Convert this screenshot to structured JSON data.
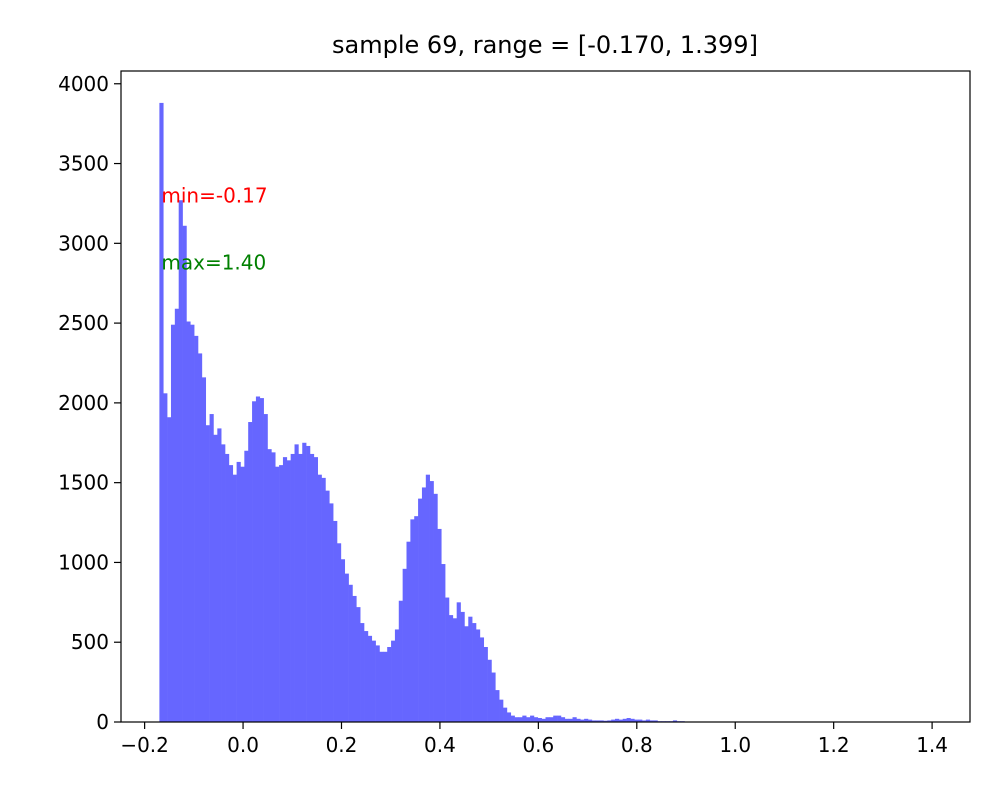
{
  "chart_data": {
    "type": "bar",
    "title": "sample 69, range = [-0.170, 1.399]",
    "xlabel": "",
    "ylabel": "",
    "xlim": [
      -0.248,
      1.477
    ],
    "ylim": [
      0,
      4080
    ],
    "bar_color": "#6666ff",
    "grid": false,
    "legend": "none",
    "xticks": [
      -0.2,
      0.0,
      0.2,
      0.4,
      0.6,
      0.8,
      1.0,
      1.2,
      1.4
    ],
    "xtick_labels": [
      "−0.2",
      "0.0",
      "0.2",
      "0.4",
      "0.6",
      "0.8",
      "1.0",
      "1.2",
      "1.4"
    ],
    "yticks": [
      0,
      500,
      1000,
      1500,
      2000,
      2500,
      3000,
      3500,
      4000
    ],
    "ytick_labels": [
      "0",
      "500",
      "1000",
      "1500",
      "2000",
      "2500",
      "3000",
      "3500",
      "4000"
    ],
    "bins": {
      "start": -0.17,
      "end": 1.399,
      "count": 200,
      "values": [
        3880,
        2060,
        1910,
        2490,
        2590,
        3270,
        3110,
        2510,
        2490,
        2420,
        2310,
        2160,
        1860,
        1930,
        1800,
        1840,
        1740,
        1680,
        1610,
        1550,
        1630,
        1600,
        1700,
        1880,
        2010,
        2040,
        2030,
        1930,
        1710,
        1690,
        1600,
        1610,
        1660,
        1640,
        1680,
        1740,
        1680,
        1750,
        1730,
        1680,
        1660,
        1550,
        1530,
        1450,
        1370,
        1260,
        1120,
        1020,
        930,
        860,
        790,
        720,
        620,
        570,
        540,
        510,
        480,
        440,
        440,
        470,
        510,
        580,
        760,
        960,
        1130,
        1270,
        1290,
        1400,
        1470,
        1550,
        1510,
        1430,
        1210,
        990,
        780,
        670,
        650,
        750,
        690,
        600,
        660,
        620,
        580,
        530,
        470,
        390,
        310,
        200,
        140,
        90,
        60,
        40,
        30,
        30,
        40,
        30,
        40,
        30,
        25,
        20,
        30,
        30,
        40,
        40,
        30,
        20,
        20,
        30,
        20,
        15,
        20,
        15,
        10,
        10,
        10,
        8,
        10,
        15,
        20,
        15,
        20,
        25,
        20,
        15,
        15,
        10,
        15,
        10,
        10,
        5,
        5,
        5,
        5,
        10,
        5,
        5,
        3,
        3,
        3,
        3,
        3,
        3,
        3,
        3,
        3,
        3,
        3,
        3,
        3,
        3,
        3,
        3,
        3,
        3,
        3,
        3,
        3,
        3,
        3,
        3,
        3,
        3,
        3,
        3,
        3,
        3,
        3,
        3,
        3,
        3,
        3,
        3,
        3,
        3,
        3,
        3,
        3,
        3,
        3,
        3,
        3,
        3,
        3,
        3,
        3,
        3,
        3,
        3,
        3,
        3,
        3,
        3,
        3,
        3,
        3,
        3,
        3,
        3,
        3,
        3,
        3
      ]
    },
    "annotations": [
      {
        "text": "min=-0.17",
        "color": "#ff0000",
        "x": -0.17,
        "y": 3300
      },
      {
        "text": "max=1.40",
        "color": "#008000",
        "x": -0.17,
        "y": 2880
      }
    ]
  }
}
